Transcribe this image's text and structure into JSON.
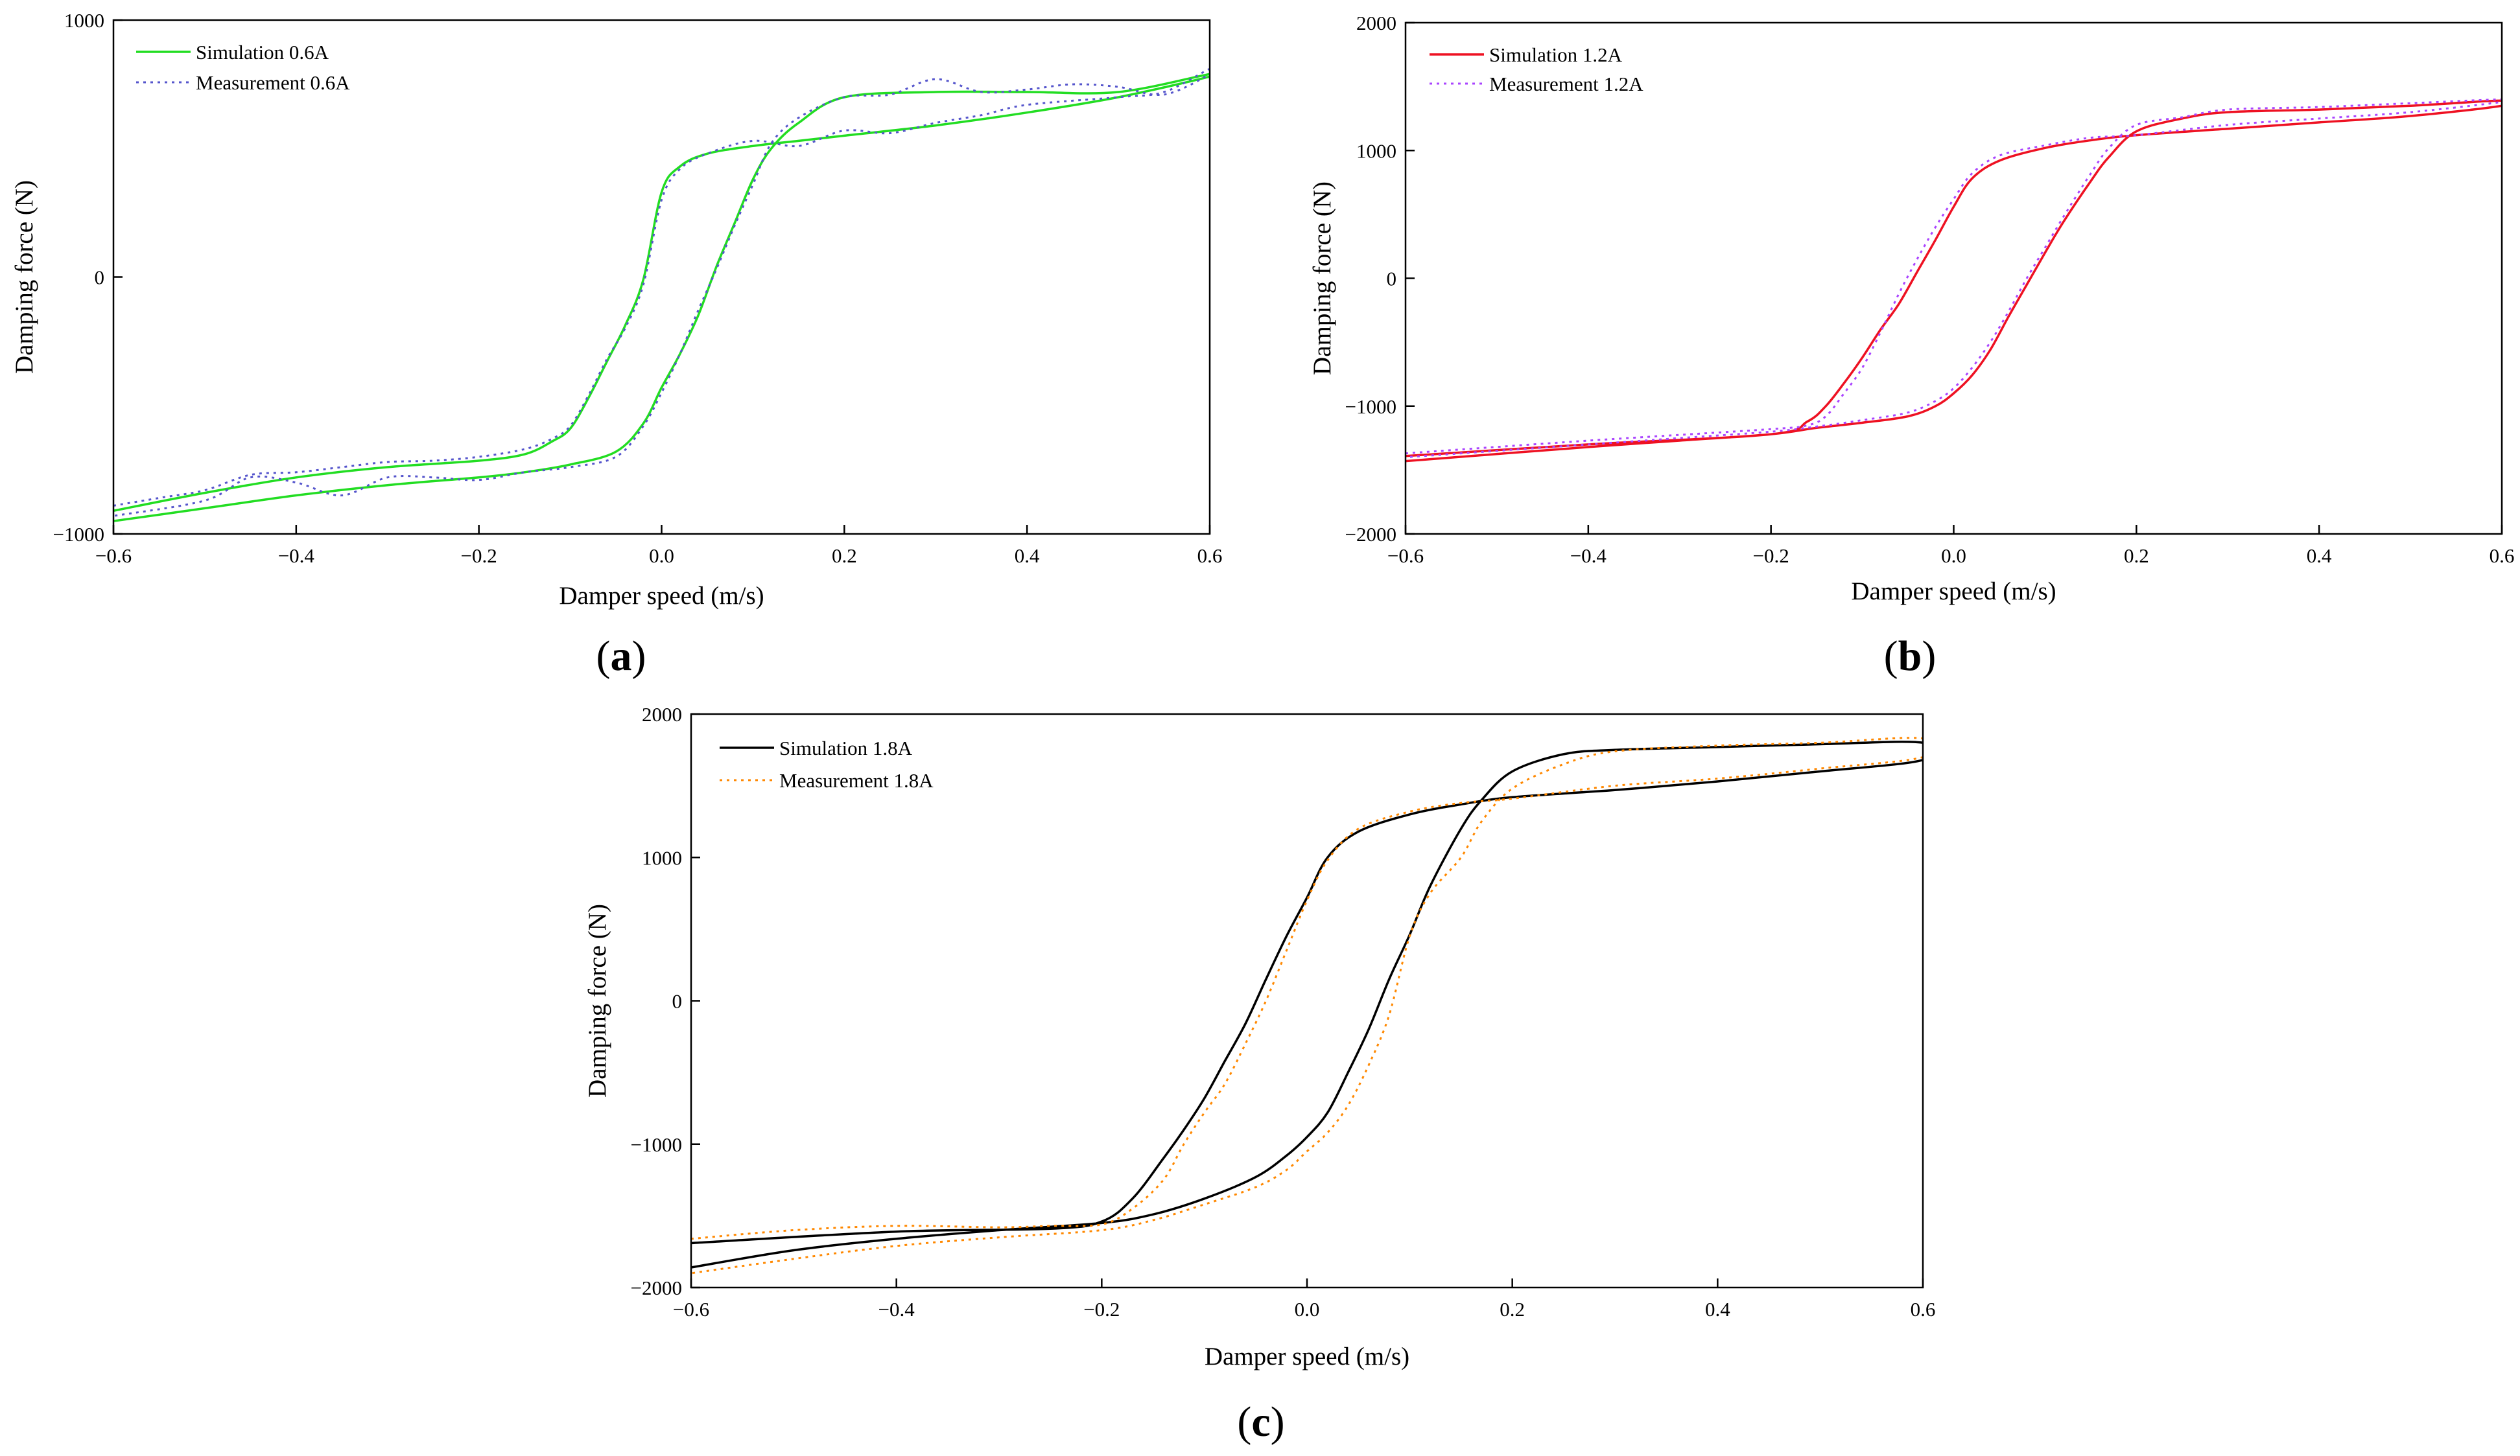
{
  "chart_data": [
    {
      "panel": "a",
      "type": "line",
      "xlabel": "Damper speed (m/s)",
      "ylabel": "Damping force (N)",
      "xlim": [
        -0.6,
        0.6
      ],
      "ylim": [
        -1000,
        1000
      ],
      "xticks": [
        "−0.6",
        "−0.4",
        "−0.2",
        "0.0",
        "0.2",
        "0.4",
        "0.6"
      ],
      "xtick_values": [
        -0.6,
        -0.4,
        -0.2,
        0.0,
        0.2,
        0.4,
        0.6
      ],
      "yticks": [
        "1000",
        "0",
        "−1000"
      ],
      "ytick_values": [
        1000,
        0,
        -1000
      ],
      "legend_position": "top-left",
      "series": [
        {
          "name": "Simulation 0.6A",
          "color": "#22dd22",
          "style": "solid",
          "x": [
            -0.6,
            -0.5,
            -0.4,
            -0.3,
            -0.2,
            -0.15,
            -0.12,
            -0.1,
            -0.08,
            -0.06,
            -0.04,
            -0.02,
            0.0,
            0.02,
            0.05,
            0.1,
            0.15,
            0.2,
            0.3,
            0.4,
            0.5,
            0.6,
            0.6,
            0.5,
            0.4,
            0.3,
            0.2,
            0.15,
            0.12,
            0.1,
            0.08,
            0.06,
            0.04,
            0.02,
            0.0,
            -0.02,
            -0.05,
            -0.1,
            -0.15,
            -0.2,
            -0.3,
            -0.4,
            -0.5,
            -0.6
          ],
          "y": [
            -910,
            -840,
            -780,
            -740,
            -715,
            -690,
            -640,
            -590,
            -470,
            -330,
            -190,
            -10,
            330,
            430,
            480,
            510,
            530,
            550,
            590,
            640,
            700,
            780,
            790,
            720,
            720,
            720,
            700,
            600,
            500,
            380,
            210,
            40,
            -150,
            -300,
            -430,
            -570,
            -680,
            -730,
            -760,
            -780,
            -810,
            -850,
            -900,
            -950
          ]
        },
        {
          "name": "Measurement 0.6A",
          "color": "#5555cc",
          "style": "dotted",
          "x": [
            -0.6,
            -0.55,
            -0.5,
            -0.45,
            -0.4,
            -0.35,
            -0.3,
            -0.25,
            -0.2,
            -0.15,
            -0.12,
            -0.1,
            -0.08,
            -0.06,
            -0.04,
            -0.02,
            0.0,
            0.02,
            0.05,
            0.1,
            0.15,
            0.2,
            0.25,
            0.3,
            0.35,
            0.4,
            0.5,
            0.55,
            0.6,
            0.6,
            0.55,
            0.5,
            0.45,
            0.4,
            0.35,
            0.3,
            0.25,
            0.2,
            0.15,
            0.12,
            0.1,
            0.08,
            0.06,
            0.04,
            0.02,
            0.0,
            -0.02,
            -0.05,
            -0.1,
            -0.15,
            -0.2,
            -0.25,
            -0.3,
            -0.35,
            -0.4,
            -0.45,
            -0.5,
            -0.6
          ],
          "y": [
            -890,
            -860,
            -830,
            -770,
            -760,
            -740,
            -720,
            -715,
            -700,
            -670,
            -630,
            -580,
            -460,
            -320,
            -200,
            -30,
            300,
            420,
            480,
            530,
            510,
            570,
            560,
            600,
            630,
            670,
            700,
            720,
            810,
            790,
            710,
            740,
            750,
            730,
            720,
            770,
            710,
            700,
            620,
            520,
            360,
            200,
            30,
            -130,
            -300,
            -450,
            -580,
            -700,
            -740,
            -760,
            -790,
            -780,
            -780,
            -850,
            -800,
            -780,
            -870,
            -930
          ]
        }
      ]
    },
    {
      "panel": "b",
      "type": "line",
      "xlabel": "Damper speed (m/s)",
      "ylabel": "Damping force (N)",
      "xlim": [
        -0.6,
        0.6
      ],
      "ylim": [
        -2000,
        2000
      ],
      "xticks": [
        "−0.6",
        "−0.4",
        "−0.2",
        "0.0",
        "0.2",
        "0.4",
        "0.6"
      ],
      "xtick_values": [
        -0.6,
        -0.4,
        -0.2,
        0.0,
        0.2,
        0.4,
        0.6
      ],
      "yticks": [
        "2000",
        "1000",
        "0",
        "−1000",
        "−2000"
      ],
      "ytick_values": [
        2000,
        1000,
        0,
        -1000,
        -2000
      ],
      "legend_position": "top-left",
      "series": [
        {
          "name": "Simulation 1.2A",
          "color": "#ee1122",
          "style": "solid",
          "x": [
            -0.6,
            -0.4,
            -0.2,
            -0.16,
            -0.14,
            -0.12,
            -0.1,
            -0.08,
            -0.06,
            -0.04,
            -0.02,
            0.0,
            0.02,
            0.05,
            0.1,
            0.15,
            0.2,
            0.3,
            0.4,
            0.5,
            0.6,
            0.6,
            0.5,
            0.4,
            0.3,
            0.25,
            0.2,
            0.17,
            0.15,
            0.12,
            0.1,
            0.08,
            0.06,
            0.04,
            0.02,
            0.0,
            -0.02,
            -0.05,
            -0.1,
            -0.15,
            -0.2,
            -0.3,
            -0.4,
            -0.6
          ],
          "y": [
            -1390,
            -1300,
            -1220,
            -1120,
            -1000,
            -820,
            -620,
            -400,
            -200,
            50,
            300,
            560,
            780,
            920,
            1020,
            1080,
            1120,
            1170,
            1220,
            1270,
            1350,
            1390,
            1350,
            1320,
            1300,
            1250,
            1150,
            950,
            760,
            440,
            200,
            -50,
            -300,
            -560,
            -760,
            -900,
            -1000,
            -1080,
            -1130,
            -1170,
            -1220,
            -1270,
            -1320,
            -1430
          ]
        },
        {
          "name": "Measurement 1.2A",
          "color": "#aa44ff",
          "style": "dotted",
          "x": [
            -0.6,
            -0.4,
            -0.2,
            -0.16,
            -0.14,
            -0.12,
            -0.1,
            -0.08,
            -0.06,
            -0.04,
            -0.02,
            0.0,
            0.02,
            0.05,
            0.1,
            0.15,
            0.2,
            0.3,
            0.4,
            0.5,
            0.6,
            0.6,
            0.5,
            0.4,
            0.3,
            0.25,
            0.2,
            0.17,
            0.15,
            0.12,
            0.1,
            0.08,
            0.06,
            0.04,
            0.02,
            0.0,
            -0.02,
            -0.05,
            -0.1,
            -0.15,
            -0.2,
            -0.3,
            -0.4,
            -0.6
          ],
          "y": [
            -1370,
            -1270,
            -1180,
            -1150,
            -1080,
            -900,
            -700,
            -420,
            -120,
            150,
            400,
            620,
            820,
            960,
            1040,
            1100,
            1120,
            1200,
            1250,
            1300,
            1380,
            1400,
            1370,
            1340,
            1320,
            1260,
            1200,
            1020,
            820,
            480,
            240,
            0,
            -260,
            -500,
            -700,
            -860,
            -960,
            -1050,
            -1110,
            -1160,
            -1200,
            -1250,
            -1300,
            -1400
          ]
        }
      ]
    },
    {
      "panel": "c",
      "type": "line",
      "xlabel": "Damper speed (m/s)",
      "ylabel": "Damping force (N)",
      "xlim": [
        -0.6,
        0.6
      ],
      "ylim": [
        -2000,
        2000
      ],
      "xticks": [
        "−0.6",
        "−0.4",
        "−0.2",
        "0.0",
        "0.2",
        "0.4",
        "0.6"
      ],
      "xtick_values": [
        -0.6,
        -0.4,
        -0.2,
        0.0,
        0.2,
        0.4,
        0.6
      ],
      "yticks": [
        "2000",
        "1000",
        "0",
        "−1000",
        "−2000"
      ],
      "ytick_values": [
        2000,
        1000,
        0,
        -1000,
        -2000
      ],
      "legend_position": "top-left",
      "series": [
        {
          "name": "Simulation 1.8A",
          "color": "#000000",
          "style": "solid",
          "x": [
            -0.6,
            -0.4,
            -0.25,
            -0.2,
            -0.17,
            -0.14,
            -0.12,
            -0.1,
            -0.08,
            -0.06,
            -0.04,
            -0.02,
            0.0,
            0.02,
            0.05,
            0.1,
            0.15,
            0.2,
            0.3,
            0.4,
            0.5,
            0.6,
            0.6,
            0.5,
            0.4,
            0.3,
            0.25,
            0.2,
            0.17,
            0.15,
            0.12,
            0.1,
            0.08,
            0.06,
            0.04,
            0.02,
            0.0,
            -0.02,
            -0.05,
            -0.1,
            -0.15,
            -0.2,
            -0.3,
            -0.4,
            -0.5,
            -0.6
          ],
          "y": [
            -1690,
            -1610,
            -1590,
            -1540,
            -1380,
            -1100,
            -900,
            -680,
            -420,
            -160,
            150,
            450,
            720,
            1000,
            1180,
            1300,
            1370,
            1420,
            1470,
            1530,
            1600,
            1680,
            1800,
            1790,
            1770,
            1750,
            1720,
            1600,
            1400,
            1200,
            800,
            460,
            150,
            -200,
            -500,
            -780,
            -950,
            -1080,
            -1230,
            -1380,
            -1490,
            -1550,
            -1600,
            -1660,
            -1740,
            -1860
          ]
        },
        {
          "name": "Measurement 1.8A",
          "color": "#ff8800",
          "style": "dotted",
          "x": [
            -0.6,
            -0.5,
            -0.4,
            -0.3,
            -0.25,
            -0.2,
            -0.17,
            -0.14,
            -0.12,
            -0.1,
            -0.08,
            -0.06,
            -0.04,
            -0.02,
            0.0,
            0.02,
            0.05,
            0.1,
            0.15,
            0.2,
            0.3,
            0.4,
            0.5,
            0.6,
            0.6,
            0.5,
            0.4,
            0.3,
            0.25,
            0.2,
            0.17,
            0.15,
            0.12,
            0.1,
            0.08,
            0.06,
            0.04,
            0.02,
            0.0,
            -0.02,
            -0.05,
            -0.1,
            -0.15,
            -0.2,
            -0.3,
            -0.4,
            -0.5,
            -0.6
          ],
          "y": [
            -1660,
            -1600,
            -1570,
            -1580,
            -1570,
            -1560,
            -1450,
            -1250,
            -1000,
            -780,
            -580,
            -300,
            0,
            350,
            700,
            980,
            1200,
            1320,
            1380,
            1410,
            1500,
            1550,
            1620,
            1700,
            1830,
            1800,
            1780,
            1740,
            1650,
            1480,
            1250,
            1000,
            750,
            450,
            -100,
            -450,
            -730,
            -920,
            -1050,
            -1180,
            -1300,
            -1420,
            -1530,
            -1600,
            -1650,
            -1710,
            -1800,
            -1900
          ]
        }
      ]
    }
  ],
  "panel_labels": [
    "a",
    "b",
    "c"
  ],
  "panel_parens": [
    "(",
    ")"
  ]
}
